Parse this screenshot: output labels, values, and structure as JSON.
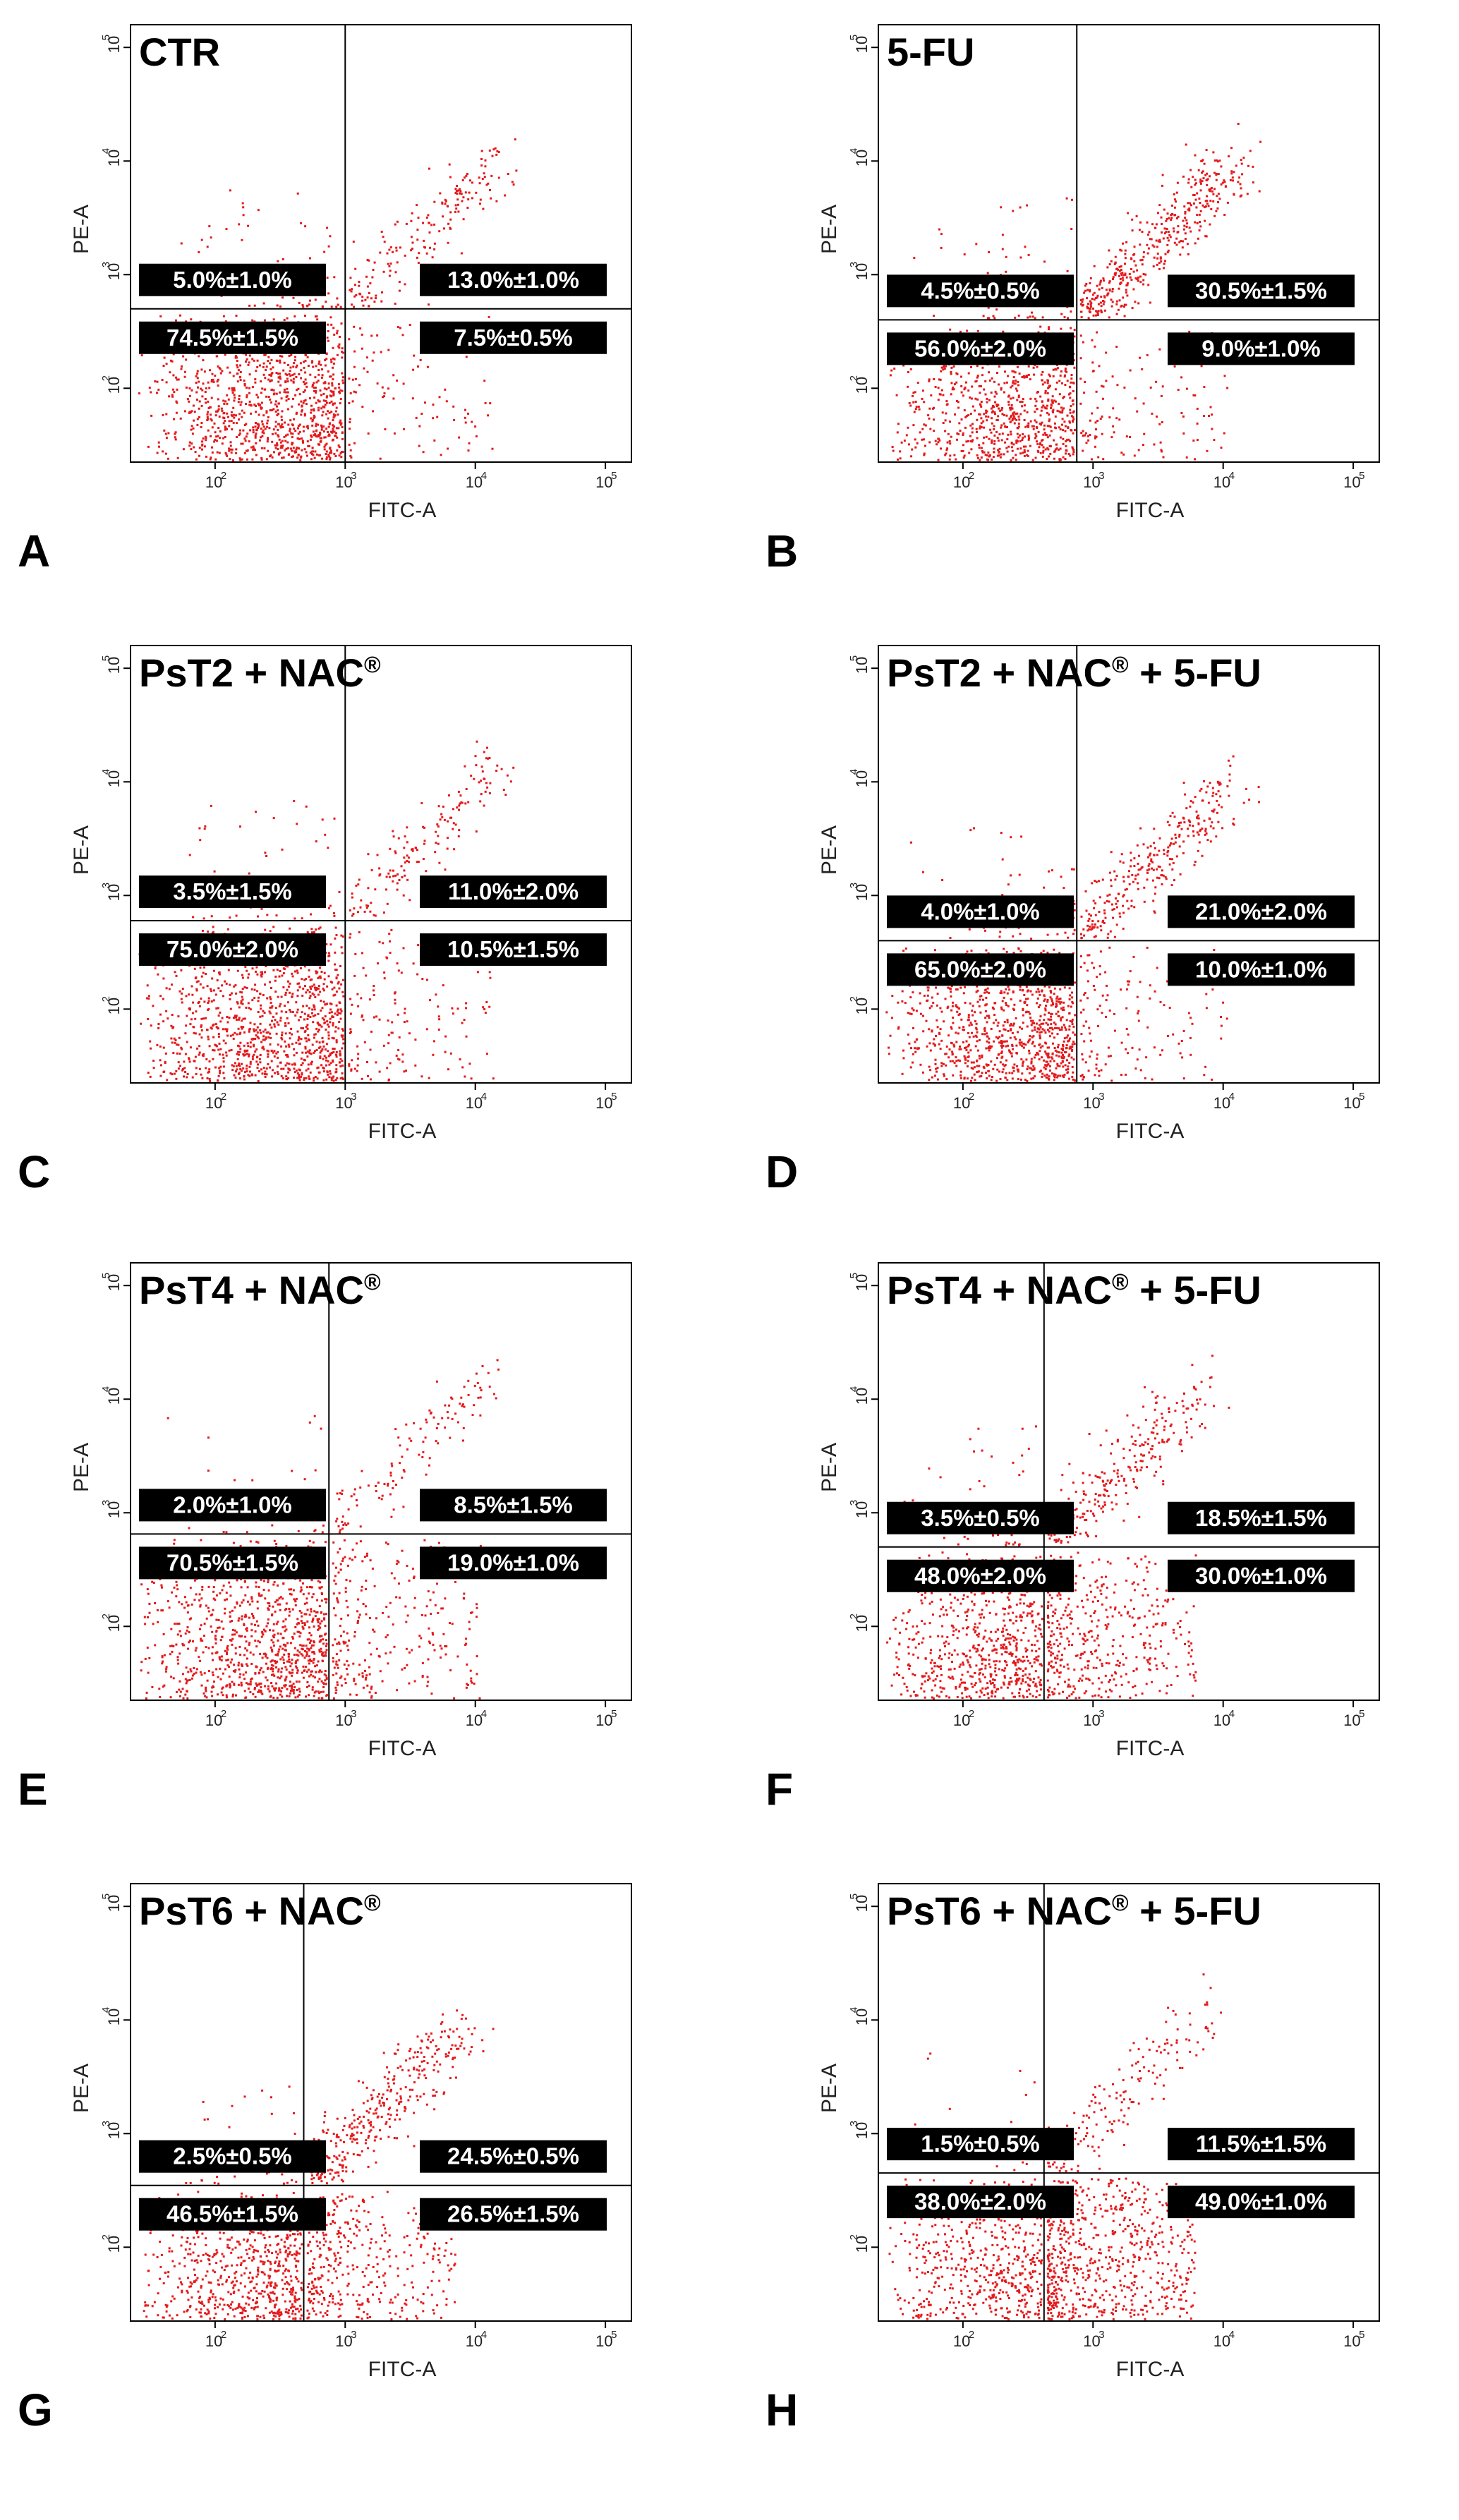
{
  "figure": {
    "colors": {
      "dots": "#e41a1c",
      "gate": "#000000",
      "label_bg": "#000000",
      "label_text": "#ffffff"
    }
  },
  "chart_data": [
    {
      "type": "scatter",
      "letter": "A",
      "title": "CTR",
      "title_sup": "",
      "title_tail": "",
      "xlabel": "FITC-A",
      "ylabel": "PE-A",
      "quadrants": {
        "UL": "5.0%±1.0%",
        "UR": "13.0%±1.0%",
        "LL": "74.5%±1.5%",
        "LR": "7.5%±0.5%"
      },
      "gate": {
        "x": 1000,
        "y": 500
      }
    },
    {
      "type": "scatter",
      "letter": "B",
      "title": "5-FU",
      "title_sup": "",
      "title_tail": "",
      "xlabel": "FITC-A",
      "ylabel": "PE-A",
      "quadrants": {
        "UL": "4.5%±0.5%",
        "UR": "30.5%±1.5%",
        "LL": "56.0%±2.0%",
        "LR": "9.0%±1.0%"
      },
      "gate": {
        "x": 750,
        "y": 400
      }
    },
    {
      "type": "scatter",
      "letter": "C",
      "title": "PsT2 + NAC",
      "title_sup": "®",
      "title_tail": "",
      "xlabel": "FITC-A",
      "ylabel": "PE-A",
      "quadrants": {
        "UL": "3.5%±1.5%",
        "UR": "11.0%±2.0%",
        "LL": "75.0%±2.0%",
        "LR": "10.5%±1.5%"
      },
      "gate": {
        "x": 1000,
        "y": 600
      }
    },
    {
      "type": "scatter",
      "letter": "D",
      "title": "PsT2 + NAC",
      "title_sup": "®",
      "title_tail": " + 5-FU",
      "xlabel": "FITC-A",
      "ylabel": "PE-A",
      "quadrants": {
        "UL": "4.0%±1.0%",
        "UR": "21.0%±2.0%",
        "LL": "65.0%±2.0%",
        "LR": "10.0%±1.0%"
      },
      "gate": {
        "x": 750,
        "y": 400
      }
    },
    {
      "type": "scatter",
      "letter": "E",
      "title": "PsT4 + NAC",
      "title_sup": "®",
      "title_tail": "",
      "xlabel": "FITC-A",
      "ylabel": "PE-A",
      "quadrants": {
        "UL": "2.0%±1.0%",
        "UR": "8.5%±1.5%",
        "LL": "70.5%±1.5%",
        "LR": "19.0%±1.0%"
      },
      "gate": {
        "x": 750,
        "y": 650
      }
    },
    {
      "type": "scatter",
      "letter": "F",
      "title": "PsT4 + NAC",
      "title_sup": "®",
      "title_tail": " + 5-FU",
      "xlabel": "FITC-A",
      "ylabel": "PE-A",
      "quadrants": {
        "UL": "3.5%±0.5%",
        "UR": "18.5%±1.5%",
        "LL": "48.0%±2.0%",
        "LR": "30.0%±1.0%"
      },
      "gate": {
        "x": 420,
        "y": 500
      }
    },
    {
      "type": "scatter",
      "letter": "G",
      "title": "PsT6 + NAC",
      "title_sup": "®",
      "title_tail": "",
      "xlabel": "FITC-A",
      "ylabel": "PE-A",
      "quadrants": {
        "UL": "2.5%±0.5%",
        "UR": "24.5%±0.5%",
        "LL": "46.5%±1.5%",
        "LR": "26.5%±1.5%"
      },
      "gate": {
        "x": 480,
        "y": 350
      }
    },
    {
      "type": "scatter",
      "letter": "H",
      "title": "PsT6 + NAC",
      "title_sup": "®",
      "title_tail": " + 5-FU",
      "xlabel": "FITC-A",
      "ylabel": "PE-A",
      "quadrants": {
        "UL": "1.5%±0.5%",
        "UR": "11.5%±1.5%",
        "LL": "38.0%±2.0%",
        "LR": "49.0%±1.0%"
      },
      "gate": {
        "x": 420,
        "y": 450
      }
    }
  ],
  "axes": {
    "x_scale": "log",
    "y_scale": "log",
    "x_ticks": [
      "10",
      "10",
      "10",
      "10"
    ],
    "x_tick_exp": [
      "2",
      "3",
      "4",
      "5"
    ],
    "y_ticks": [
      "10",
      "10",
      "10",
      "10"
    ],
    "y_tick_exp": [
      "2",
      "3",
      "4",
      "5"
    ]
  }
}
